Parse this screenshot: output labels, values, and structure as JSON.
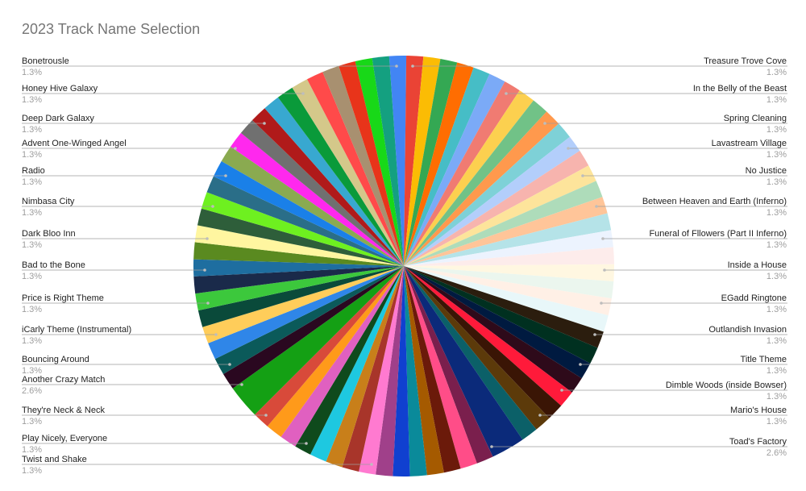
{
  "chart_data": {
    "type": "pie",
    "title": "2023 Track Name Selection",
    "labelled_slices": {
      "left": [
        {
          "name": "Bonetrousle",
          "pct": "1.3%"
        },
        {
          "name": "Honey Hive Galaxy",
          "pct": "1.3%"
        },
        {
          "name": "Deep Dark Galaxy",
          "pct": "1.3%"
        },
        {
          "name": "Advent One-Winged Angel",
          "pct": "1.3%"
        },
        {
          "name": "Radio",
          "pct": "1.3%"
        },
        {
          "name": "Nimbasa City",
          "pct": "1.3%"
        },
        {
          "name": "Dark Bloo Inn",
          "pct": "1.3%"
        },
        {
          "name": "Bad to the Bone",
          "pct": "1.3%"
        },
        {
          "name": "Price is Right Theme",
          "pct": "1.3%"
        },
        {
          "name": "iCarly Theme (Instrumental)",
          "pct": "1.3%"
        },
        {
          "name": "Bouncing Around",
          "pct": "1.3%"
        },
        {
          "name": "Another Crazy Match",
          "pct": "2.6%"
        },
        {
          "name": "They're Neck & Neck",
          "pct": "1.3%"
        },
        {
          "name": "Play Nicely, Everyone",
          "pct": "1.3%"
        },
        {
          "name": "Twist and Shake",
          "pct": "1.3%"
        }
      ],
      "right": [
        {
          "name": "Treasure Trove Cove",
          "pct": "1.3%"
        },
        {
          "name": "In the Belly of the Beast",
          "pct": "1.3%"
        },
        {
          "name": "Spring Cleaning",
          "pct": "1.3%"
        },
        {
          "name": "Lavastream Village",
          "pct": "1.3%"
        },
        {
          "name": "No Justice",
          "pct": "1.3%"
        },
        {
          "name": "Between Heaven and Earth (Inferno)",
          "pct": "1.3%"
        },
        {
          "name": "Funeral of Fllowers (Part II Inferno)",
          "pct": "1.3%"
        },
        {
          "name": "Inside a House",
          "pct": "1.3%"
        },
        {
          "name": "EGadd Ringtone",
          "pct": "1.3%"
        },
        {
          "name": "Outlandish Invasion",
          "pct": "1.3%"
        },
        {
          "name": "Title Theme",
          "pct": "1.3%"
        },
        {
          "name": "Dimble Woods (inside Bowser)",
          "pct": "1.3%"
        },
        {
          "name": "Mario's House",
          "pct": "1.3%"
        },
        {
          "name": "Toad's Factory",
          "pct": "2.6%"
        }
      ]
    },
    "slices": [
      {
        "value": 1.3,
        "color": "#4285f4"
      },
      {
        "value": 1.3,
        "color": "#ea4335"
      },
      {
        "value": 1.3,
        "color": "#fbbc04"
      },
      {
        "value": 1.3,
        "color": "#34a853"
      },
      {
        "value": 1.3,
        "color": "#ff6d01"
      },
      {
        "value": 1.3,
        "color": "#46bdc6"
      },
      {
        "value": 1.3,
        "color": "#7baaf7"
      },
      {
        "value": 1.3,
        "color": "#f07b72"
      },
      {
        "value": 1.3,
        "color": "#fcd04f"
      },
      {
        "value": 1.3,
        "color": "#71c287"
      },
      {
        "value": 1.3,
        "color": "#ff994d"
      },
      {
        "value": 1.3,
        "color": "#7ed1d7"
      },
      {
        "value": 1.3,
        "color": "#b3cefb"
      },
      {
        "value": 1.3,
        "color": "#f7b4ae"
      },
      {
        "value": 1.3,
        "color": "#fde49b"
      },
      {
        "value": 1.3,
        "color": "#aedcba"
      },
      {
        "value": 1.3,
        "color": "#ffc599"
      },
      {
        "value": 1.3,
        "color": "#b5e3e8"
      },
      {
        "value": 1.3,
        "color": "#ecf3fe"
      },
      {
        "value": 1.3,
        "color": "#fdeceb"
      },
      {
        "value": 1.3,
        "color": "#fff7e1"
      },
      {
        "value": 1.3,
        "color": "#ebf6ee"
      },
      {
        "value": 1.3,
        "color": "#fff0e6"
      },
      {
        "value": 1.3,
        "color": "#e8f7f9"
      },
      {
        "value": 1.3,
        "color": "#2b1d0e"
      },
      {
        "value": 1.3,
        "color": "#003020"
      },
      {
        "value": 1.3,
        "color": "#001a40"
      },
      {
        "value": 1.3,
        "color": "#2e0a1a"
      },
      {
        "value": 1.3,
        "color": "#ff1a3a"
      },
      {
        "value": 1.3,
        "color": "#3a1505"
      },
      {
        "value": 1.3,
        "color": "#5c3a0a"
      },
      {
        "value": 1.3,
        "color": "#0b6068"
      },
      {
        "value": 2.6,
        "color": "#0b2a7a"
      },
      {
        "value": 1.3,
        "color": "#7a1f4d"
      },
      {
        "value": 1.3,
        "color": "#ff4d88"
      },
      {
        "value": 1.3,
        "color": "#6b1a0a"
      },
      {
        "value": 1.3,
        "color": "#a55a00"
      },
      {
        "value": 1.3,
        "color": "#0a8a9a"
      },
      {
        "value": 1.3,
        "color": "#1040d0"
      },
      {
        "value": 1.3,
        "color": "#a0408a"
      },
      {
        "value": 1.3,
        "color": "#ff7ad0"
      },
      {
        "value": 1.3,
        "color": "#a8352a"
      },
      {
        "value": 1.3,
        "color": "#c87f1a"
      },
      {
        "value": 1.3,
        "color": "#1ec8e0"
      },
      {
        "value": 1.3,
        "color": "#0f4a1c"
      },
      {
        "value": 1.3,
        "color": "#e060c0"
      },
      {
        "value": 1.3,
        "color": "#ff9a1a"
      },
      {
        "value": 1.3,
        "color": "#d84a3a"
      },
      {
        "value": 2.6,
        "color": "#14a014"
      },
      {
        "value": 1.3,
        "color": "#2a0820"
      },
      {
        "value": 1.3,
        "color": "#0b5a5a"
      },
      {
        "value": 1.3,
        "color": "#2f86e8"
      },
      {
        "value": 1.3,
        "color": "#ffcd5a"
      },
      {
        "value": 1.3,
        "color": "#0a4a3a"
      },
      {
        "value": 1.3,
        "color": "#3cc83c"
      },
      {
        "value": 1.3,
        "color": "#1a2a4a"
      },
      {
        "value": 1.3,
        "color": "#1e6ea0"
      },
      {
        "value": 1.3,
        "color": "#5a8a20"
      },
      {
        "value": 1.3,
        "color": "#fff6a0"
      },
      {
        "value": 1.3,
        "color": "#2e5e3a"
      },
      {
        "value": 1.3,
        "color": "#6ef020"
      },
      {
        "value": 1.3,
        "color": "#2a6e88"
      },
      {
        "value": 1.3,
        "color": "#1a80e8"
      },
      {
        "value": 1.3,
        "color": "#8aaa50"
      },
      {
        "value": 1.3,
        "color": "#ff28ee"
      },
      {
        "value": 1.3,
        "color": "#707070"
      },
      {
        "value": 1.3,
        "color": "#b01a1a"
      },
      {
        "value": 1.3,
        "color": "#38a8d0"
      },
      {
        "value": 1.3,
        "color": "#0a9a3a"
      },
      {
        "value": 1.3,
        "color": "#d4c88a"
      },
      {
        "value": 1.3,
        "color": "#ff4a4a"
      },
      {
        "value": 1.3,
        "color": "#a89070"
      },
      {
        "value": 1.3,
        "color": "#e8341a"
      },
      {
        "value": 1.3,
        "color": "#18d818"
      },
      {
        "value": 1.3,
        "color": "#14a080"
      }
    ]
  }
}
